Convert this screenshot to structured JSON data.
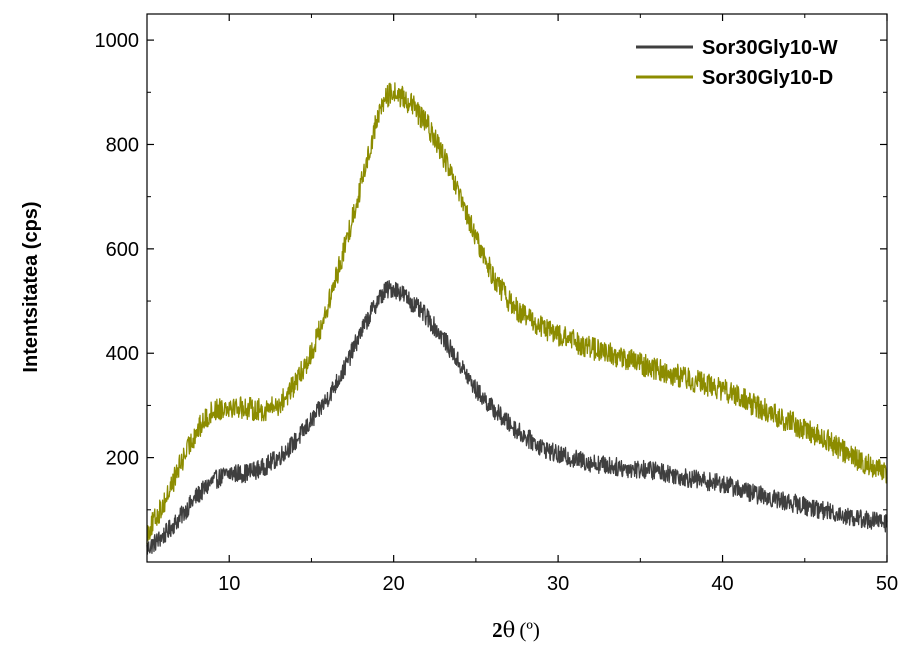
{
  "chart_data": {
    "type": "line",
    "xlabel": {
      "main": "2",
      "theta": "θ",
      "unit": "(º)"
    },
    "ylabel": "Intentsitatea (cps)",
    "xlim": [
      5,
      50
    ],
    "ylim": [
      0,
      1050
    ],
    "x_ticks": [
      10,
      20,
      30,
      40,
      50
    ],
    "y_ticks": [
      200,
      400,
      600,
      800,
      1000
    ],
    "x_tick_labels": [
      "10",
      "20",
      "30",
      "40",
      "50"
    ],
    "y_tick_labels": [
      "200",
      "400",
      "600",
      "800",
      "1000"
    ],
    "grid": false,
    "legend_position": "top-right",
    "series": [
      {
        "name": "Sor30Gly10-W",
        "color": "#3f3f3f",
        "noise": 18,
        "x": [
          5,
          6,
          7,
          8,
          9,
          10,
          11,
          12,
          13,
          14,
          15,
          16,
          17,
          18,
          19,
          19.5,
          20,
          20.5,
          21,
          22,
          23,
          24,
          25,
          26,
          27,
          28,
          29,
          30,
          32,
          34,
          36,
          38,
          40,
          42,
          44,
          46,
          48,
          50
        ],
        "y": [
          25,
          50,
          85,
          125,
          155,
          170,
          170,
          180,
          200,
          230,
          270,
          315,
          370,
          440,
          500,
          520,
          525,
          515,
          500,
          470,
          430,
          380,
          330,
          295,
          265,
          240,
          220,
          205,
          190,
          180,
          175,
          160,
          150,
          130,
          115,
          100,
          85,
          75
        ]
      },
      {
        "name": "Sor30Gly10-D",
        "color": "#8c8c00",
        "noise": 22,
        "x": [
          5,
          6,
          7,
          8,
          9,
          10,
          11,
          12,
          13,
          14,
          15,
          16,
          17,
          18,
          19,
          19.5,
          20,
          20.5,
          21,
          22,
          23,
          24,
          25,
          26,
          27,
          28,
          29,
          30,
          32,
          34,
          36,
          38,
          40,
          42,
          44,
          46,
          48,
          50
        ],
        "y": [
          55,
          110,
          185,
          250,
          290,
          300,
          295,
          290,
          300,
          340,
          400,
          490,
          600,
          720,
          850,
          890,
          900,
          890,
          880,
          840,
          780,
          700,
          620,
          550,
          500,
          470,
          450,
          435,
          410,
          390,
          370,
          350,
          330,
          300,
          270,
          240,
          200,
          170
        ]
      }
    ]
  }
}
